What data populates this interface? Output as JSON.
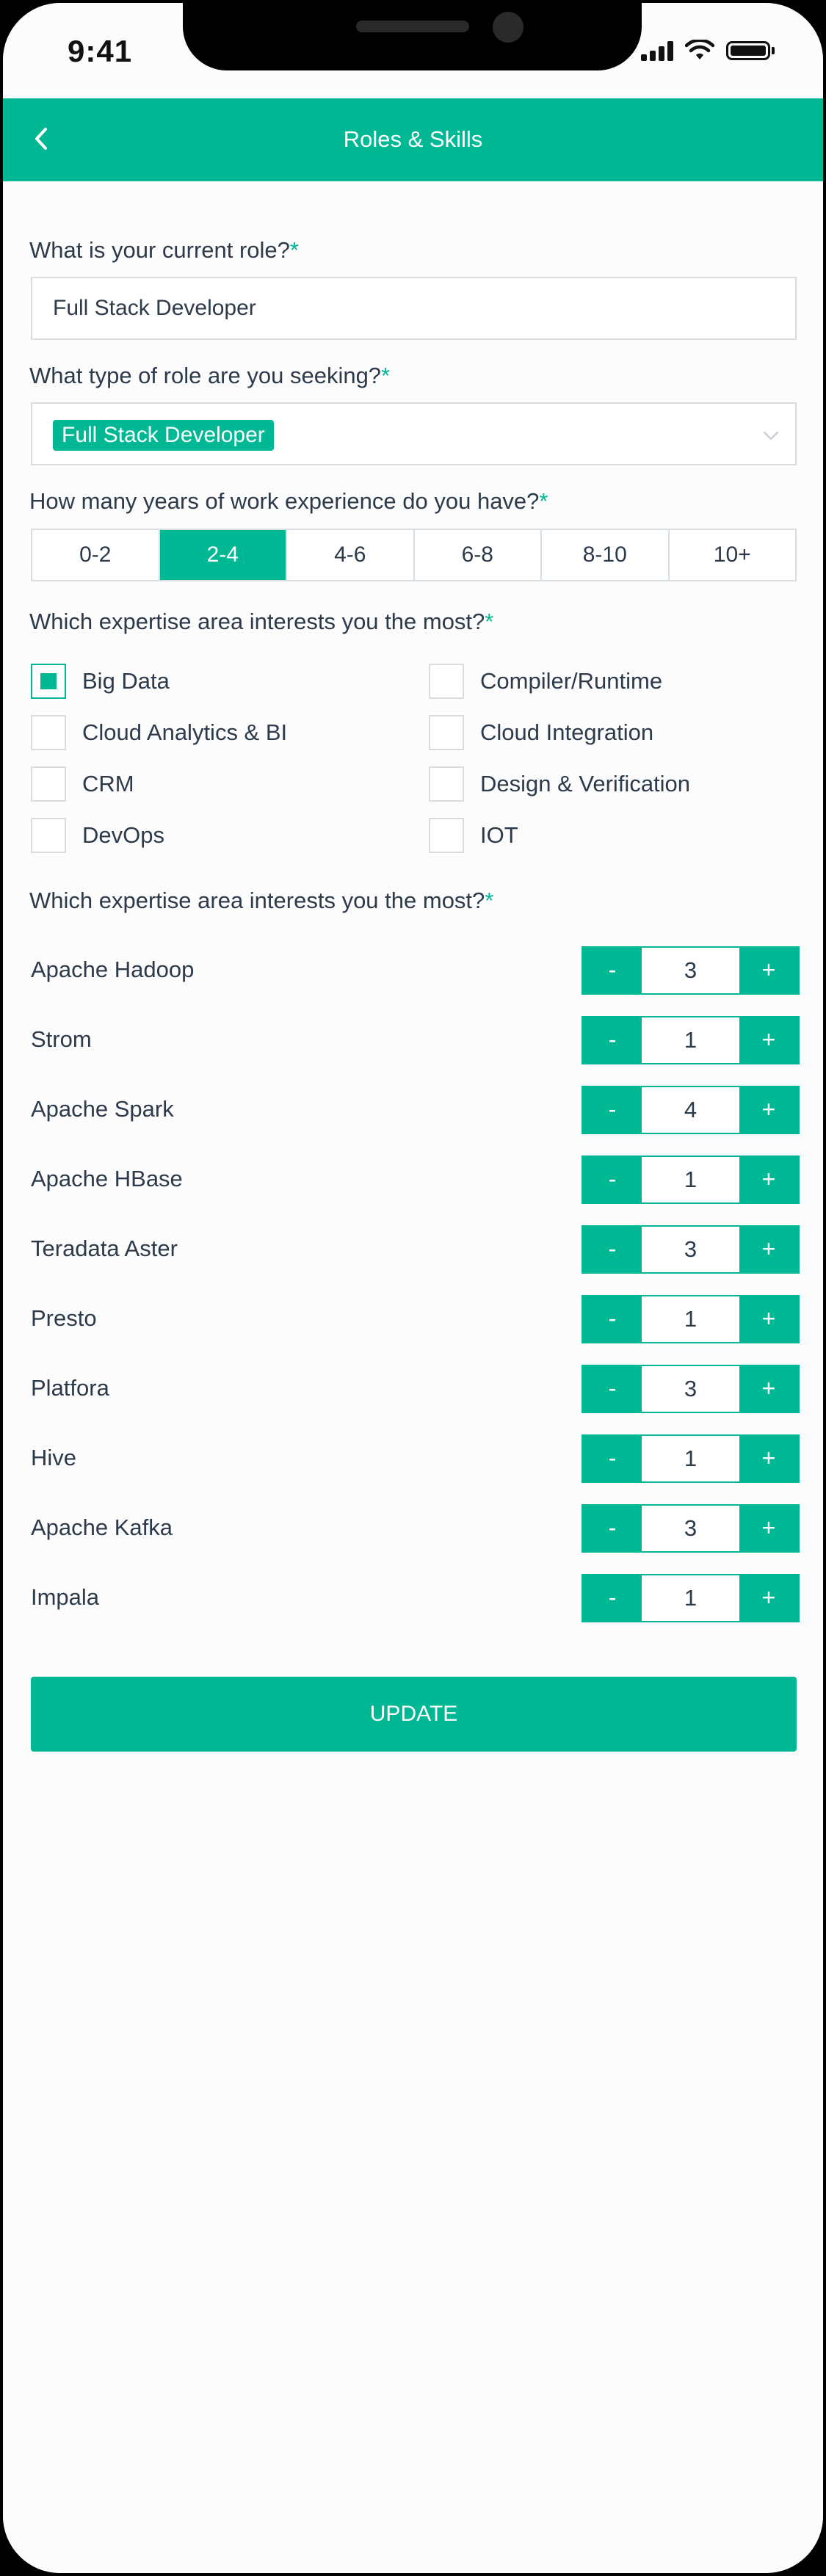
{
  "status_bar": {
    "time": "9:41"
  },
  "header": {
    "title": "Roles & Skills"
  },
  "current_role": {
    "label": "What is your current role?",
    "required_mark": "*",
    "value": "Full Stack Developer"
  },
  "seeking_role": {
    "label": "What type of role are you seeking?",
    "required_mark": "*",
    "tag": "Full Stack Developer"
  },
  "experience": {
    "label": "How many years of work experience do you have?",
    "required_mark": "*",
    "options": [
      "0-2",
      "2-4",
      "4-6",
      "6-8",
      "8-10",
      "10+"
    ],
    "selected": "2-4"
  },
  "expertise": {
    "label": "Which expertise area interests you the most?",
    "required_mark": "*",
    "options": [
      {
        "label": "Big Data",
        "checked": true
      },
      {
        "label": "Compiler/Runtime",
        "checked": false
      },
      {
        "label": "Cloud Analytics & BI",
        "checked": false
      },
      {
        "label": "Cloud Integration",
        "checked": false
      },
      {
        "label": "CRM",
        "checked": false
      },
      {
        "label": "Design & Verification",
        "checked": false
      },
      {
        "label": "DevOps",
        "checked": false
      },
      {
        "label": "IOT",
        "checked": false
      }
    ]
  },
  "skills": {
    "label": "Which expertise area interests you the most?",
    "required_mark": "*",
    "minus": "-",
    "plus": "+",
    "items": [
      {
        "name": "Apache Hadoop",
        "value": "3"
      },
      {
        "name": "Strom",
        "value": "1"
      },
      {
        "name": "Apache Spark",
        "value": "4"
      },
      {
        "name": "Apache HBase",
        "value": "1"
      },
      {
        "name": "Teradata Aster",
        "value": "3"
      },
      {
        "name": "Presto",
        "value": "1"
      },
      {
        "name": "Platfora",
        "value": "3"
      },
      {
        "name": "Hive",
        "value": "1"
      },
      {
        "name": "Apache Kafka",
        "value": "3"
      },
      {
        "name": "Impala",
        "value": "1"
      }
    ]
  },
  "actions": {
    "update_label": "UPDATE"
  },
  "colors": {
    "accent": "#00b894",
    "text": "#2d3a4a",
    "border": "#d8dde2"
  }
}
